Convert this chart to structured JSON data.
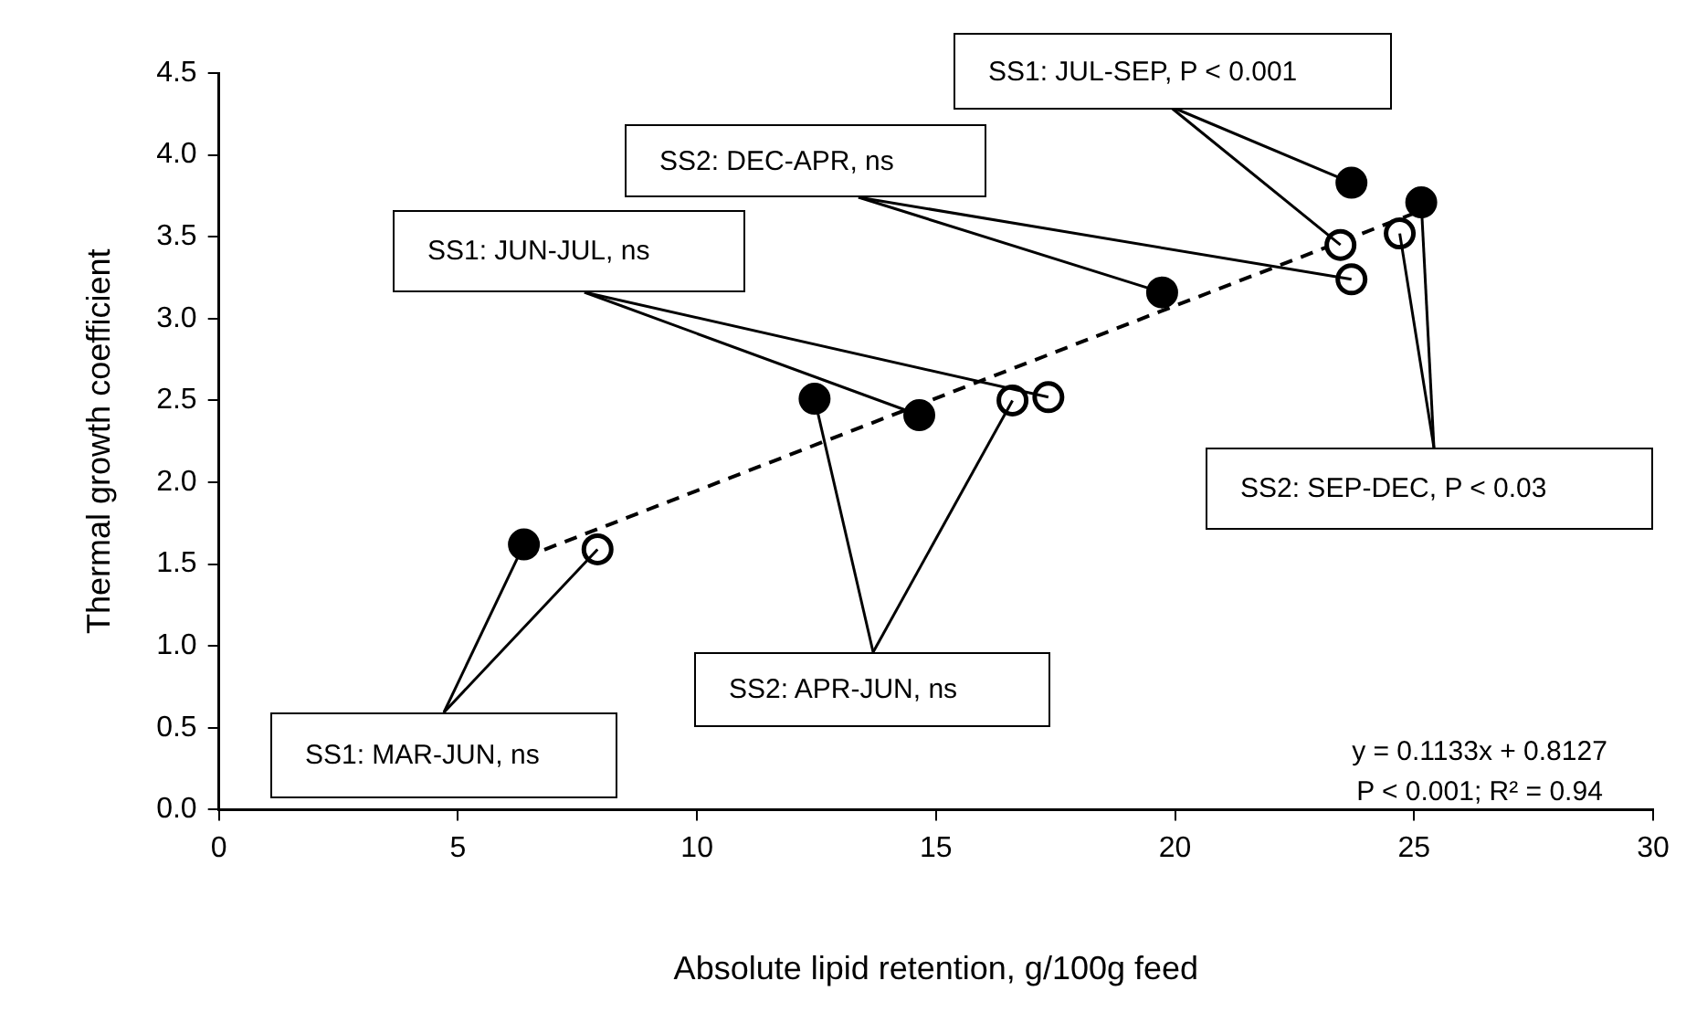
{
  "chart_data": {
    "type": "scatter",
    "xlabel": "Absolute lipid retention, g/100g feed",
    "ylabel": "Thermal growth coefficient",
    "xlim": [
      0,
      30
    ],
    "xticks": [
      0,
      5,
      10,
      15,
      20,
      25,
      30
    ],
    "ylim": [
      0,
      4.5
    ],
    "yticks": [
      {
        "value": 0,
        "label": "0.0"
      },
      {
        "value": 0.5,
        "label": "0.5"
      },
      {
        "value": 1,
        "label": "1.0"
      },
      {
        "value": 1.5,
        "label": "1.5"
      },
      {
        "value": 2,
        "label": "2.0"
      },
      {
        "value": 2.5,
        "label": "2.5"
      },
      {
        "value": 3,
        "label": "3.0"
      },
      {
        "value": 3.5,
        "label": "3.5"
      },
      {
        "value": 4,
        "label": "4.0"
      },
      {
        "value": 4.5,
        "label": "4.5"
      }
    ],
    "grid": false,
    "legend": false,
    "marker": "circle",
    "series": [
      {
        "color": "#000000",
        "x": [
          6.38,
          12.46,
          14.65,
          19.73,
          23.69,
          25.15
        ],
        "values": [
          1.62,
          2.51,
          2.41,
          3.16,
          3.83,
          3.71
        ]
      },
      {
        "color": "#ffffff",
        "x": [
          7.92,
          16.6,
          17.35,
          23.46,
          23.69,
          24.7
        ],
        "values": [
          1.59,
          2.5,
          2.52,
          3.45,
          3.24,
          3.52
        ]
      },
      {
        "type": "line",
        "color": "#000000",
        "line_style": "dashed",
        "marker": "none",
        "x": [
          6.38,
          25.15
        ],
        "values": [
          1.54,
          3.66
        ]
      }
    ],
    "annotations": [
      {
        "text": "SS1: JUL-SEP, P < 0.001",
        "x": 23.69,
        "y": 3.83
      },
      {
        "text": "SS2: DEC-APR, ns",
        "x": 19.73,
        "y": 3.16
      },
      {
        "text": "SS1: JUN-JUL, ns",
        "x": 14.65,
        "y": 2.41
      },
      {
        "text": "SS2: SEP-DEC, P < 0.03",
        "x": 25.15,
        "y": 3.71
      },
      {
        "text": "SS2: APR-JUN, ns",
        "x": 12.46,
        "y": 2.51
      },
      {
        "text": "SS1: MAR-JUN, ns",
        "x": 6.38,
        "y": 1.62
      },
      "y = 0.1133x + 0.8127",
      "P < 0.001; R² = 0.94"
    ]
  }
}
